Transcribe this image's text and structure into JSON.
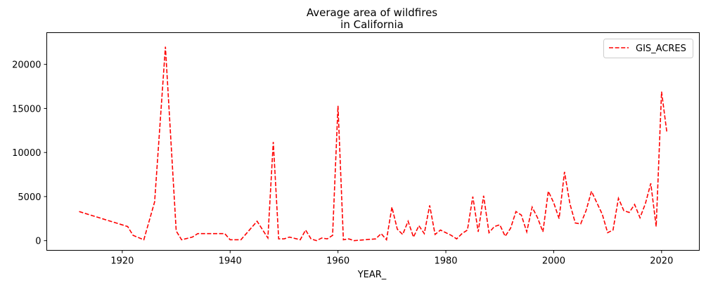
{
  "chart_data": {
    "type": "line",
    "title_line1": "Average area of wildfires",
    "title_line2": "in California",
    "xlabel": "YEAR_",
    "ylabel": "",
    "xlim": [
      1906,
      2027
    ],
    "ylim": [
      -1100,
      23600
    ],
    "xticks": [
      1920,
      1940,
      1960,
      1980,
      2000,
      2020
    ],
    "yticks": [
      0,
      5000,
      10000,
      15000,
      20000
    ],
    "grid": false,
    "legend_position": "upper-right",
    "series": [
      {
        "name": "GIS_ACRES",
        "color": "#ff0000",
        "line_style": "dashed",
        "x": [
          1912,
          1921,
          1922,
          1924,
          1926,
          1928,
          1930,
          1931,
          1933,
          1934,
          1937,
          1939,
          1940,
          1942,
          1945,
          1947,
          1948,
          1949,
          1950,
          1951,
          1953,
          1954,
          1955,
          1956,
          1957,
          1958,
          1959,
          1960,
          1961,
          1962,
          1963,
          1965,
          1967,
          1968,
          1969,
          1970,
          1971,
          1972,
          1973,
          1974,
          1975,
          1976,
          1977,
          1978,
          1979,
          1980,
          1981,
          1982,
          1983,
          1984,
          1985,
          1986,
          1987,
          1988,
          1989,
          1990,
          1991,
          1992,
          1993,
          1994,
          1995,
          1996,
          1997,
          1998,
          1999,
          2000,
          2001,
          2002,
          2003,
          2004,
          2005,
          2006,
          2007,
          2008,
          2009,
          2010,
          2011,
          2012,
          2013,
          2014,
          2015,
          2016,
          2017,
          2018,
          2019,
          2020,
          2021
        ],
        "y": [
          3300,
          1600,
          600,
          100,
          4400,
          22000,
          1100,
          100,
          400,
          800,
          800,
          800,
          100,
          100,
          2200,
          300,
          11200,
          200,
          200,
          400,
          100,
          1200,
          200,
          0,
          300,
          200,
          600,
          15300,
          100,
          200,
          0,
          100,
          200,
          800,
          100,
          3800,
          1300,
          700,
          2200,
          400,
          1700,
          800,
          4000,
          700,
          1200,
          900,
          600,
          200,
          800,
          1200,
          5000,
          1000,
          5100,
          900,
          1600,
          1800,
          500,
          1400,
          3300,
          2900,
          1000,
          3800,
          2600,
          1000,
          5600,
          4300,
          2500,
          7800,
          4200,
          2000,
          1900,
          3400,
          5600,
          4300,
          3000,
          900,
          1200,
          4800,
          3400,
          3200,
          4100,
          2600,
          4200,
          6500,
          1600,
          16900,
          12200
        ]
      }
    ]
  }
}
